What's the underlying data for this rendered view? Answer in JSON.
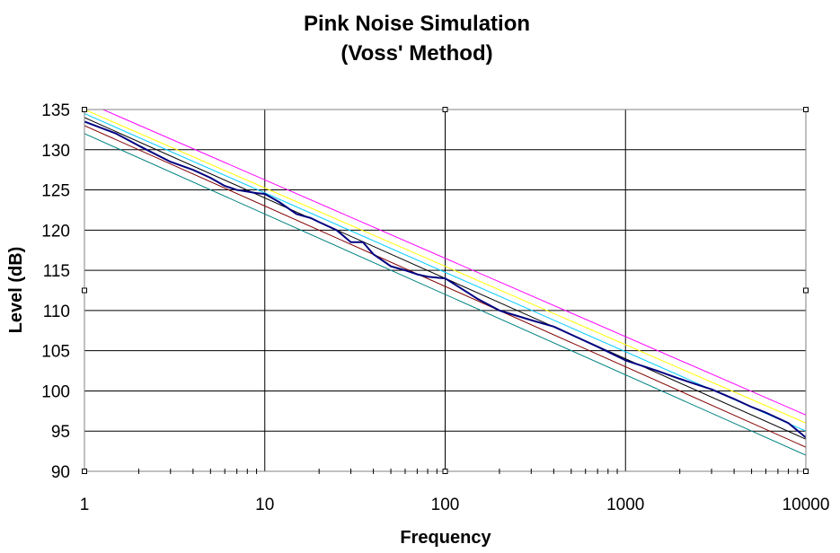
{
  "chart_data": {
    "type": "line",
    "title": "Pink Noise Simulation",
    "subtitle": "(Voss' Method)",
    "xlabel": "Frequency",
    "ylabel": "Level (dB)",
    "x_scale": "log",
    "xlim": [
      1,
      10000
    ],
    "ylim": [
      90,
      135
    ],
    "x_ticks": [
      "1",
      "10",
      "100",
      "1000",
      "10000"
    ],
    "y_ticks": [
      "90",
      "95",
      "100",
      "105",
      "110",
      "115",
      "120",
      "125",
      "130",
      "135"
    ],
    "grid": true,
    "legend": "none",
    "reference_lines": [
      {
        "color": "#ff00ff",
        "x": [
          1,
          10000
        ],
        "y": [
          136,
          97
        ]
      },
      {
        "color": "#ffff00",
        "x": [
          1,
          10000
        ],
        "y": [
          135,
          96
        ]
      },
      {
        "color": "#00ccff",
        "x": [
          1,
          10000
        ],
        "y": [
          134.5,
          95
        ]
      },
      {
        "color": "#000000",
        "x": [
          1,
          10000
        ],
        "y": [
          134,
          94
        ]
      },
      {
        "color": "#800000",
        "x": [
          1,
          10000
        ],
        "y": [
          133,
          93
        ]
      },
      {
        "color": "#008080",
        "x": [
          1,
          10000
        ],
        "y": [
          132,
          92
        ]
      }
    ],
    "series": [
      {
        "color": "#000080",
        "x": [
          1,
          1.5,
          2,
          3,
          4,
          5,
          6,
          7,
          8,
          9,
          10,
          12,
          15,
          18,
          20,
          25,
          30,
          35,
          40,
          50,
          60,
          70,
          80,
          100,
          150,
          200,
          300,
          400,
          500,
          700,
          1000,
          1500,
          2000,
          3000,
          4000,
          5000,
          6000,
          8000,
          10000
        ],
        "y": [
          133.5,
          132.0,
          130.5,
          128.5,
          127.5,
          126.5,
          125.5,
          125.0,
          124.8,
          124.6,
          124.5,
          123.5,
          122.0,
          121.5,
          121.0,
          120.0,
          118.5,
          118.5,
          117.0,
          115.5,
          115.0,
          114.5,
          114.2,
          114.0,
          111.5,
          110.0,
          108.8,
          108.0,
          107.0,
          105.5,
          103.8,
          102.5,
          101.5,
          100.2,
          99.0,
          98.0,
          97.3,
          96.0,
          94.2
        ]
      }
    ]
  }
}
